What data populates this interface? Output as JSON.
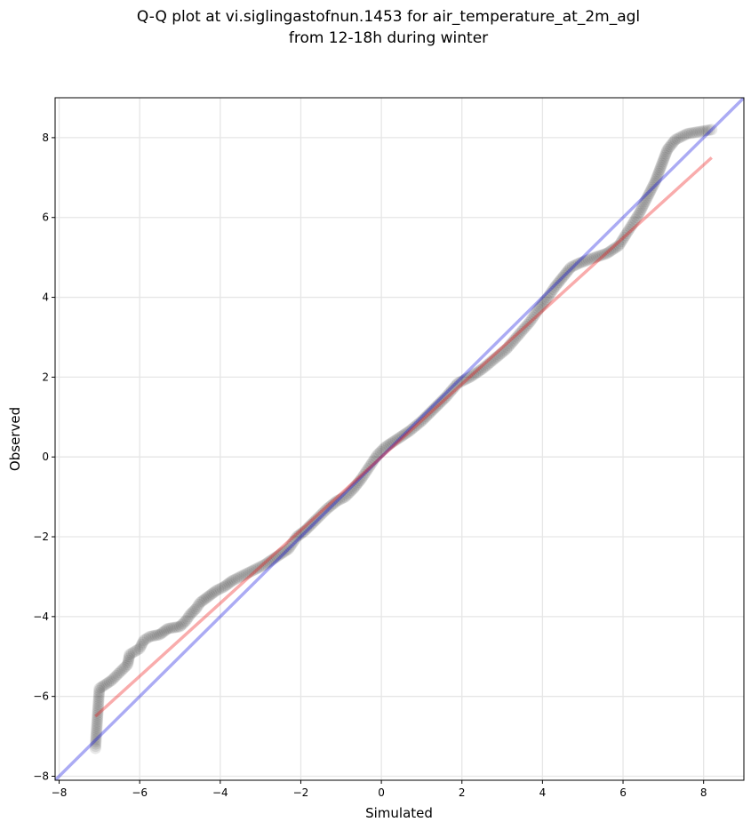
{
  "chart_data": {
    "type": "scatter",
    "title_lines": [
      "Q-Q plot at vi.siglingastofnun.1453 for air_temperature_at_2m_agl",
      "from 12-18h during winter"
    ],
    "xlabel": "Simulated",
    "ylabel": "Observed",
    "xlim": [
      -8.1,
      9.0
    ],
    "ylim": [
      -8.1,
      9.0
    ],
    "xticks": [
      -8,
      -6,
      -4,
      -2,
      0,
      2,
      4,
      6,
      8
    ],
    "yticks": [
      -8,
      -6,
      -4,
      -2,
      0,
      2,
      4,
      6,
      8
    ],
    "grid": true,
    "colors": {
      "points": "#000000",
      "identity_line": "#0000dd",
      "fit_line": "#ee1111",
      "grid": "#e6e6e6"
    },
    "identity_line": {
      "x": [
        -8.1,
        9.0
      ],
      "y": [
        -8.1,
        9.0
      ]
    },
    "fit_line": {
      "x": [
        -7.1,
        8.2
      ],
      "y": [
        -6.5,
        7.5
      ]
    },
    "series": [
      {
        "values": [
          [
            -7.1,
            -7.3
          ],
          [
            -7.0,
            -5.8
          ],
          [
            -6.7,
            -5.6
          ],
          [
            -6.3,
            -5.2
          ],
          [
            -6.25,
            -4.95
          ],
          [
            -6.0,
            -4.8
          ],
          [
            -5.9,
            -4.6
          ],
          [
            -5.75,
            -4.5
          ],
          [
            -5.5,
            -4.45
          ],
          [
            -5.3,
            -4.3
          ],
          [
            -5.0,
            -4.25
          ],
          [
            -4.85,
            -4.1
          ],
          [
            -4.75,
            -3.95
          ],
          [
            -4.6,
            -3.8
          ],
          [
            -4.5,
            -3.65
          ],
          [
            -4.3,
            -3.5
          ],
          [
            -4.1,
            -3.35
          ],
          [
            -3.9,
            -3.25
          ],
          [
            -3.7,
            -3.1
          ],
          [
            -3.5,
            -3.0
          ],
          [
            -3.2,
            -2.85
          ],
          [
            -2.9,
            -2.7
          ],
          [
            -2.6,
            -2.5
          ],
          [
            -2.3,
            -2.3
          ],
          [
            -2.1,
            -2.0
          ],
          [
            -1.9,
            -1.85
          ],
          [
            -1.6,
            -1.55
          ],
          [
            -1.35,
            -1.3
          ],
          [
            -1.1,
            -1.1
          ],
          [
            -0.9,
            -1.0
          ],
          [
            -0.7,
            -0.8
          ],
          [
            -0.5,
            -0.55
          ],
          [
            -0.3,
            -0.25
          ],
          [
            -0.1,
            0.05
          ],
          [
            0.1,
            0.25
          ],
          [
            0.4,
            0.45
          ],
          [
            0.7,
            0.65
          ],
          [
            1.0,
            0.9
          ],
          [
            1.3,
            1.2
          ],
          [
            1.6,
            1.5
          ],
          [
            1.9,
            1.85
          ],
          [
            2.2,
            2.0
          ],
          [
            2.5,
            2.2
          ],
          [
            2.8,
            2.45
          ],
          [
            3.1,
            2.7
          ],
          [
            3.4,
            3.05
          ],
          [
            3.7,
            3.4
          ],
          [
            3.9,
            3.7
          ],
          [
            4.1,
            3.95
          ],
          [
            4.3,
            4.25
          ],
          [
            4.5,
            4.5
          ],
          [
            4.7,
            4.75
          ],
          [
            4.9,
            4.85
          ],
          [
            5.3,
            5.0
          ],
          [
            5.6,
            5.1
          ],
          [
            5.9,
            5.3
          ],
          [
            6.15,
            5.7
          ],
          [
            6.4,
            6.1
          ],
          [
            6.6,
            6.5
          ],
          [
            6.8,
            6.9
          ],
          [
            6.95,
            7.3
          ],
          [
            7.1,
            7.7
          ],
          [
            7.3,
            7.95
          ],
          [
            7.6,
            8.1
          ],
          [
            8.2,
            8.2
          ]
        ]
      }
    ]
  }
}
